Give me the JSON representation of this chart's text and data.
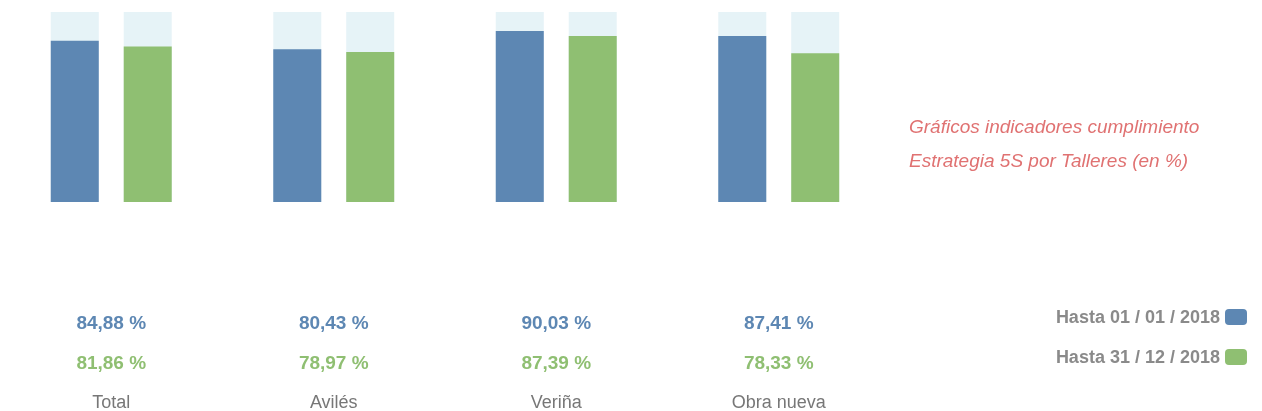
{
  "chart_data": {
    "type": "bar",
    "title": "Gráficos indicadores cumplimiento Estrategia 5S por Talleres (en %)",
    "categories": [
      "Total",
      "Avilés",
      "Veriña",
      "Obra nueva"
    ],
    "series": [
      {
        "name": "Hasta 01 / 01 / 2018",
        "color": "#5d87b3",
        "values": [
          84.88,
          80.43,
          90.03,
          87.41
        ],
        "value_labels": [
          "84,88 %",
          "80,43 %",
          "90,03 %",
          "87,41 %"
        ]
      },
      {
        "name": "Hasta 31 / 12 / 2018",
        "color": "#8fbf72",
        "values": [
          81.86,
          78.97,
          87.39,
          78.33
        ],
        "value_labels": [
          "81,86 %",
          "78,97 %",
          "87,39 %",
          "78,33 %"
        ]
      }
    ],
    "ylim": [
      0,
      100
    ],
    "tick_labels": "x",
    "legend": "bottom right"
  }
}
